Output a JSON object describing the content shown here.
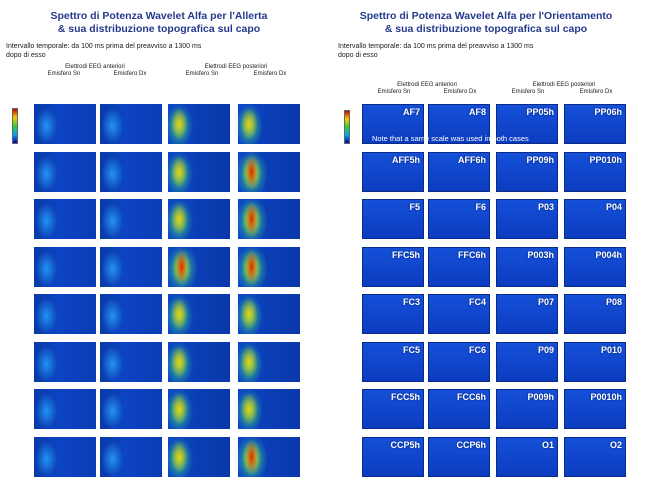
{
  "left": {
    "title_line1": "Spettro di Potenza Wavelet Alfa per l'Allerta",
    "title_line2": "& sua distribuzione topografica sul capo",
    "subtitle_line1": "Intervallo temporale: da 100 ms prima del preavviso a 1300 ms",
    "subtitle_line2": "dopo di esso",
    "group_anterior": "Elettrodi EEG anteriori",
    "group_posterior": "Elettrodi EEG posteriori",
    "col_labels": [
      "Emisfero Sn",
      "Emisfero Dx",
      "Emisfero Sn",
      "Emisfero Dx"
    ]
  },
  "right": {
    "title_line1": "Spettro di Potenza Wavelet Alfa per l'Orientamento",
    "title_line2": "& sua distribuzione topografica sul capo",
    "subtitle_line1": "Intervallo temporale: da 100 ms prima del preavviso a 1300 ms",
    "subtitle_line2": "dopo di esso",
    "group_anterior": "Elettrodi EEG anteriori",
    "group_posterior": "Elettrodi EEG posteriori",
    "col_labels": [
      "Emisfero Sn",
      "Emisfero Dx",
      "Emisfero Sn",
      "Emisfero Dx"
    ],
    "note": "Note that a same scale was used in both cases",
    "electrodes": [
      [
        "AF7",
        "AF8",
        "PP05h",
        "PP06h"
      ],
      [
        "AFF5h",
        "AFF6h",
        "PP09h",
        "PP010h"
      ],
      [
        "F5",
        "F6",
        "P03",
        "P04"
      ],
      [
        "FFC5h",
        "FFC6h",
        "P003h",
        "P004h"
      ],
      [
        "FC3",
        "FC4",
        "P07",
        "P08"
      ],
      [
        "FC5",
        "FC6",
        "P09",
        "P010"
      ],
      [
        "FCC5h",
        "FCC6h",
        "P009h",
        "P0010h"
      ],
      [
        "CCP5h",
        "CCP6h",
        "O1",
        "O2"
      ]
    ]
  },
  "colors": {
    "title": "#243a8c",
    "cell_blue": "#0b3cc0",
    "colorbar": [
      "#c00000",
      "#ffcc00",
      "#33cc33",
      "#00aaee",
      "#0000aa"
    ]
  }
}
